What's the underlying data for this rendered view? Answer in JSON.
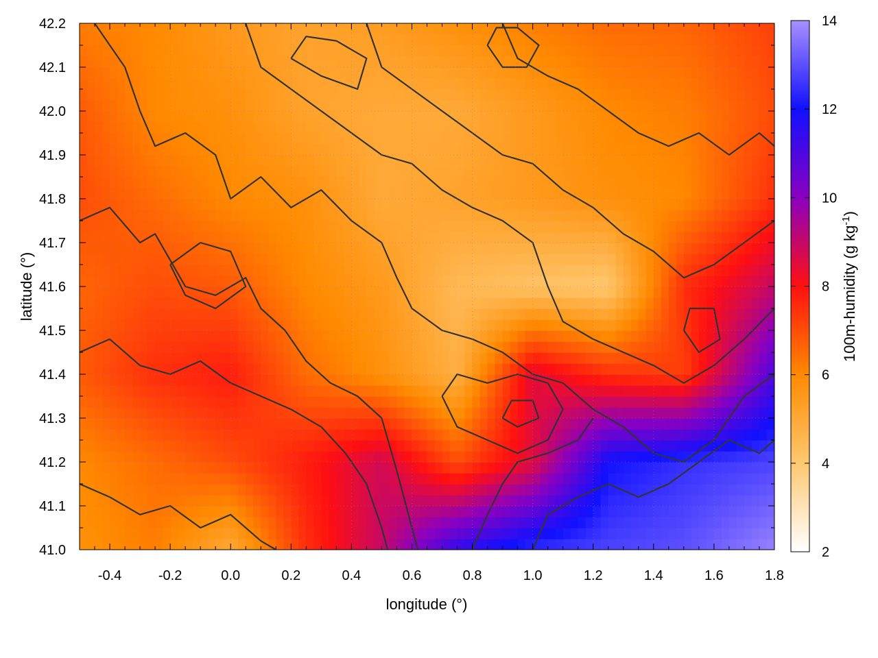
{
  "chart_data": {
    "type": "heatmap",
    "title": "",
    "xlabel": "longitude (°)",
    "ylabel": "latitude (°)",
    "xlim": [
      -0.5,
      1.8
    ],
    "ylim": [
      41.0,
      42.2
    ],
    "x_ticks": [
      -0.4,
      -0.2,
      0.0,
      0.2,
      0.4,
      0.6,
      0.8,
      1.0,
      1.2,
      1.4,
      1.6,
      1.8
    ],
    "x_tick_labels": [
      "-0.4",
      "-0.2",
      "0.0",
      "0.2",
      "0.4",
      "0.6",
      "0.8",
      "1.0",
      "1.2",
      "1.4",
      "1.6",
      "1.8"
    ],
    "y_ticks": [
      41.0,
      41.1,
      41.2,
      41.3,
      41.4,
      41.5,
      41.6,
      41.7,
      41.8,
      41.9,
      42.0,
      42.1,
      42.2
    ],
    "y_tick_labels": [
      "41.0",
      "41.1",
      "41.2",
      "41.3",
      "41.4",
      "41.5",
      "41.6",
      "41.7",
      "41.8",
      "41.9",
      "42.0",
      "42.1",
      "42.2"
    ],
    "grid": true,
    "colorbar": {
      "label_main": "100m-humidity (g kg",
      "label_sup": "-1",
      "label_close": ")",
      "range": [
        2,
        14
      ],
      "ticks": [
        2,
        4,
        6,
        8,
        10,
        12,
        14
      ],
      "tick_labels": [
        "2",
        "4",
        "6",
        "8",
        "10",
        "12",
        "14"
      ],
      "colormap": [
        {
          "value": 2,
          "color": "#ffffff"
        },
        {
          "value": 4,
          "color": "#ffc870"
        },
        {
          "value": 6,
          "color": "#ff8a00"
        },
        {
          "value": 8,
          "color": "#ff1010"
        },
        {
          "value": 10,
          "color": "#8a00c0"
        },
        {
          "value": 12,
          "color": "#1010ff"
        },
        {
          "value": 14,
          "color": "#a890ff"
        }
      ]
    },
    "field_samples": {
      "lon": [
        -0.5,
        -0.25,
        0.0,
        0.25,
        0.5,
        0.75,
        1.0,
        1.25,
        1.5,
        1.8
      ],
      "lat": [
        41.0,
        41.2,
        41.4,
        41.6,
        41.8,
        42.0,
        42.2
      ],
      "humidity": [
        [
          5.8,
          6.2,
          5.0,
          7.5,
          9.0,
          11.5,
          12.5,
          12.8,
          13.0,
          13.8
        ],
        [
          6.0,
          6.5,
          7.0,
          7.8,
          8.8,
          7.0,
          8.5,
          12.0,
          12.5,
          12.8
        ],
        [
          6.8,
          7.5,
          7.8,
          6.5,
          5.8,
          4.8,
          8.5,
          7.5,
          7.2,
          11.0
        ],
        [
          6.6,
          7.0,
          6.8,
          6.0,
          5.5,
          4.5,
          4.2,
          4.0,
          7.5,
          9.0
        ],
        [
          7.0,
          6.5,
          6.0,
          5.8,
          5.0,
          5.2,
          5.5,
          5.8,
          6.0,
          7.5
        ],
        [
          6.8,
          6.0,
          5.8,
          5.2,
          5.0,
          5.0,
          5.5,
          6.0,
          6.2,
          7.0
        ],
        [
          6.2,
          6.0,
          5.5,
          5.2,
          5.4,
          5.8,
          6.2,
          6.5,
          6.6,
          7.2
        ]
      ]
    },
    "contours": "dark gray terrain contour lines"
  }
}
